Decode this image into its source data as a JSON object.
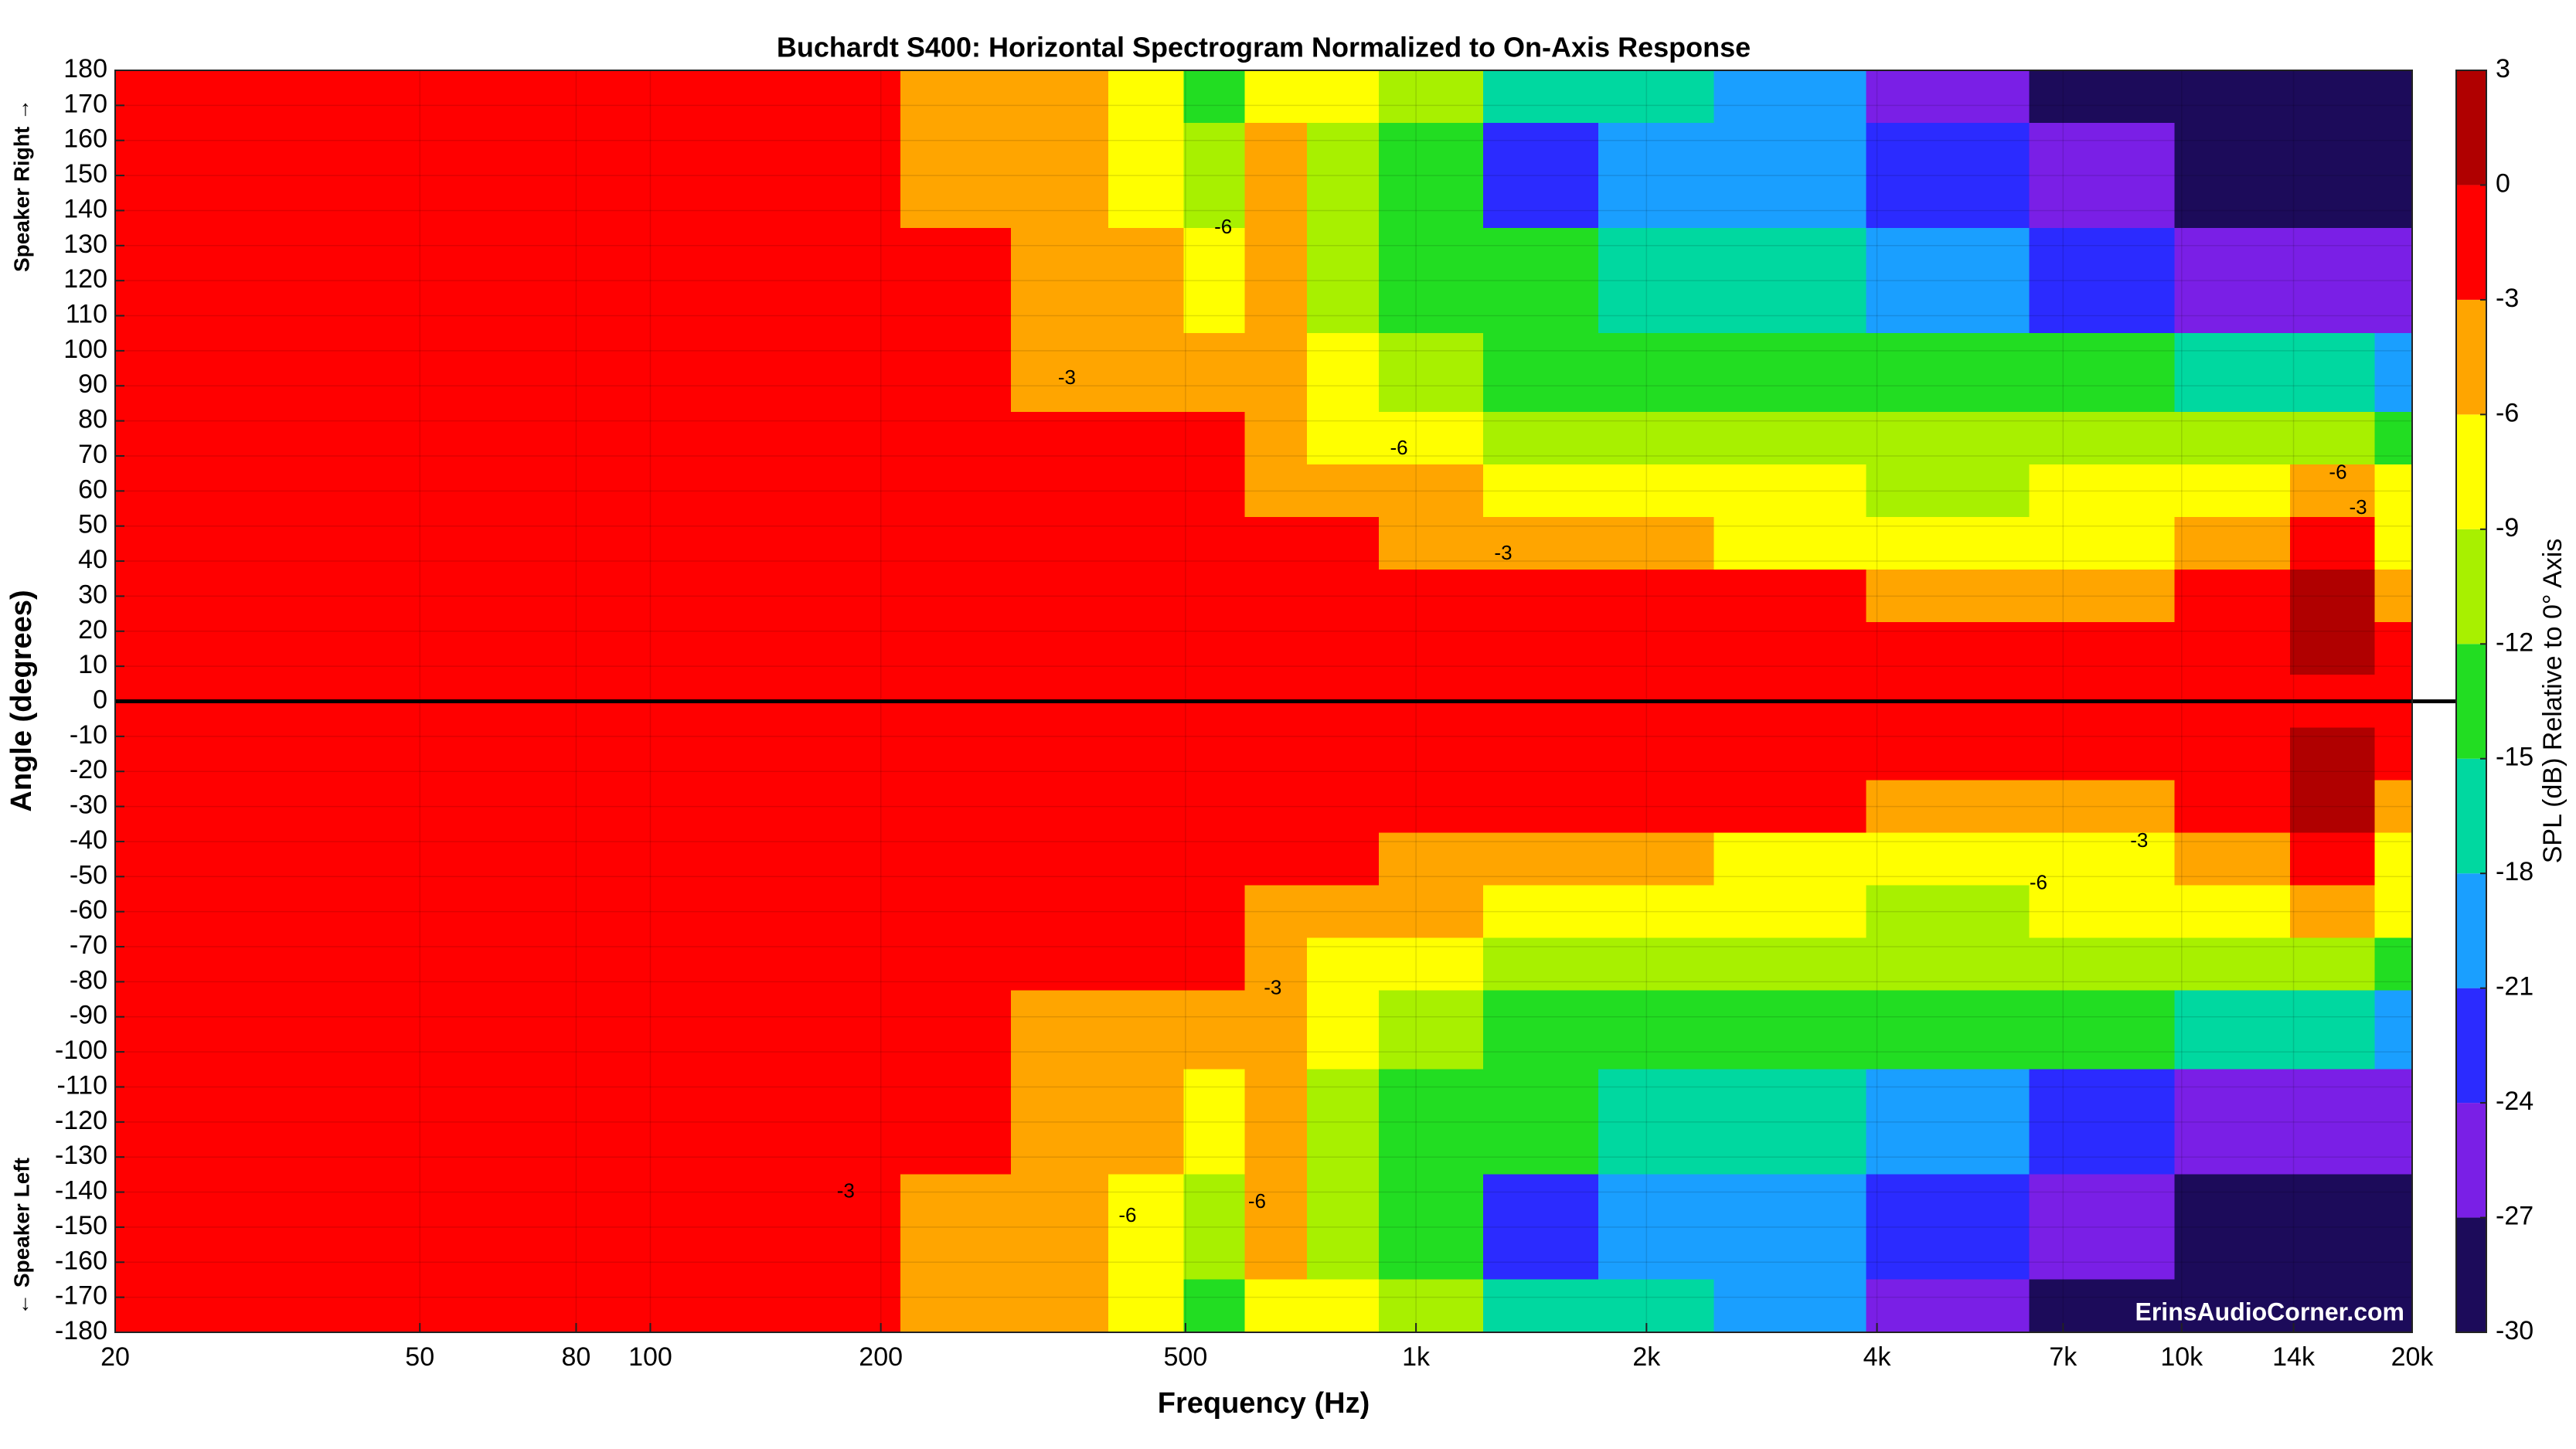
{
  "chart_data": {
    "type": "heatmap",
    "title": "Buchardt S400: Horizontal Spectrogram Normalized to On-Axis Response",
    "x_label": "Frequency (Hz)",
    "y_label": "Angle (degrees)",
    "y_label_top": "Speaker Right →",
    "y_label_bottom": "← Speaker Left",
    "colorbar_label": "SPL (dB) Relative to 0° Axis",
    "watermark": "ErinsAudioCorner.com",
    "x_log": true,
    "grid": true,
    "hline": 0,
    "xlim": [
      20,
      20000
    ],
    "ylim": [
      -180,
      180
    ],
    "xticks": [
      20,
      50,
      80,
      100,
      200,
      500,
      {
        "value": 1000,
        "label": "1k"
      },
      {
        "value": 2000,
        "label": "2k"
      },
      {
        "value": 4000,
        "label": "4k"
      },
      {
        "value": 7000,
        "label": "7k"
      },
      {
        "value": 10000,
        "label": "10k"
      },
      {
        "value": 14000,
        "label": "14k"
      },
      {
        "value": 20000,
        "label": "20k"
      }
    ],
    "yticks": [
      180,
      170,
      160,
      150,
      140,
      130,
      120,
      110,
      100,
      90,
      80,
      70,
      60,
      50,
      40,
      30,
      20,
      10,
      0,
      -10,
      -20,
      -30,
      -40,
      -50,
      -60,
      -70,
      -80,
      -90,
      -100,
      -110,
      -120,
      -130,
      -140,
      -150,
      -160,
      -170,
      -180
    ],
    "clim": [
      -30,
      3
    ],
    "cticks": [
      -30,
      -27,
      -24,
      -21,
      -18,
      -15,
      -12,
      -9,
      -6,
      -3,
      0,
      3
    ],
    "colors": [
      "#1c0b5a",
      "#7a1fe6",
      "#2b2bff",
      "#1a9fff",
      "#00d8a0",
      "#22dd22",
      "#a8f000",
      "#ffff00",
      "#ffa500",
      "#ff0000",
      "#b00000"
    ],
    "x": [
      20,
      100,
      180,
      250,
      350,
      450,
      550,
      650,
      800,
      1000,
      1500,
      2000,
      3000,
      5000,
      8000,
      12000,
      16000,
      20000
    ],
    "y": [
      180,
      150,
      120,
      90,
      75,
      60,
      45,
      30,
      15,
      0,
      -15,
      -30,
      -45,
      -60,
      -75,
      -90,
      -120,
      -150,
      -180
    ],
    "z": [
      [
        0,
        0,
        -2,
        -4,
        -4.5,
        -7,
        -14,
        -7,
        -8,
        -11,
        -15,
        -17,
        -20,
        -24,
        -27,
        -30,
        -30,
        -30
      ],
      [
        0,
        0,
        -0.5,
        -4,
        -4.5,
        -7,
        -10,
        -5,
        -9,
        -13,
        -22,
        -18,
        -20,
        -22,
        -24,
        -30,
        -28,
        -30
      ],
      [
        0,
        0,
        0,
        -1.5,
        -4,
        -5,
        -7,
        -5,
        -9,
        -12,
        -14,
        -15,
        -17,
        -18,
        -21,
        -25,
        -24,
        -25
      ],
      [
        0,
        0,
        0,
        0,
        -3.5,
        -4,
        -3,
        -4.5,
        -8,
        -10,
        -12,
        -12.5,
        -13,
        -13.5,
        -14,
        -15,
        -15,
        -18
      ],
      [
        0,
        0,
        0,
        0,
        0,
        -1,
        -2,
        -4,
        -7,
        -8,
        -10,
        -10,
        -10.5,
        -11,
        -11,
        -11,
        -9,
        -12
      ],
      [
        0,
        0,
        0,
        0,
        0,
        0,
        -1,
        -3.5,
        -4,
        -5,
        -6.5,
        -7.5,
        -8.5,
        -9,
        -8.5,
        -8,
        -5,
        -8
      ],
      [
        0,
        0,
        0,
        0,
        0,
        0,
        0,
        -1,
        -2,
        -3.5,
        -4,
        -5,
        -6.5,
        -7,
        -6.5,
        -5,
        -1,
        -6
      ],
      [
        0,
        0,
        0,
        0,
        0,
        0,
        0,
        0,
        -0.5,
        -1,
        -1.5,
        -2,
        -2.5,
        -3.5,
        -3.5,
        -2.5,
        1,
        -3
      ],
      [
        0,
        0,
        0,
        0,
        0,
        0,
        0,
        0,
        0,
        0,
        0,
        0,
        0,
        0,
        0,
        -0.5,
        1,
        -1
      ],
      [
        0,
        0,
        0,
        0,
        0,
        0,
        0,
        0,
        0,
        0,
        0,
        0,
        0,
        0,
        0,
        0,
        0,
        0
      ],
      [
        0,
        0,
        0,
        0,
        0,
        0,
        0,
        0,
        0,
        0,
        0,
        0,
        0,
        0,
        0,
        -0.5,
        1,
        -1
      ],
      [
        0,
        0,
        0,
        0,
        0,
        0,
        0,
        0,
        -0.5,
        -1,
        -1.5,
        -2,
        -2.5,
        -3.5,
        -3.5,
        -2.5,
        1,
        -3
      ],
      [
        0,
        0,
        0,
        0,
        0,
        0,
        0,
        -1,
        -2,
        -3.5,
        -4,
        -5,
        -6.5,
        -7,
        -6.5,
        -5,
        -1,
        -6
      ],
      [
        0,
        0,
        0,
        0,
        0,
        0,
        -1,
        -3.5,
        -4,
        -5,
        -6.5,
        -7.5,
        -8.5,
        -9,
        -8.5,
        -8,
        -5,
        -8
      ],
      [
        0,
        0,
        0,
        0,
        0,
        -1,
        -2,
        -4,
        -7,
        -8,
        -10,
        -10,
        -10.5,
        -11,
        -11,
        -11,
        -9,
        -12
      ],
      [
        0,
        0,
        0,
        0,
        -3.5,
        -4,
        -3,
        -4.5,
        -8,
        -10,
        -12,
        -12.5,
        -13,
        -13.5,
        -14,
        -15,
        -15,
        -18
      ],
      [
        0,
        0,
        0,
        -1.5,
        -4,
        -5,
        -7,
        -5,
        -9,
        -12,
        -14,
        -15,
        -17,
        -18,
        -21,
        -25,
        -24,
        -25
      ],
      [
        0,
        0,
        -0.5,
        -4,
        -4.5,
        -7,
        -10,
        -5,
        -9,
        -13,
        -22,
        -18,
        -20,
        -22,
        -24,
        -30,
        -28,
        -30
      ],
      [
        0,
        0,
        -2,
        -4,
        -4.5,
        -7,
        -14,
        -7,
        -8,
        -11,
        -15,
        -17,
        -20,
        -24,
        -27,
        -30,
        -30,
        -30
      ]
    ],
    "annotations": [
      {
        "text": "-3",
        "x": 350,
        "y": 92
      },
      {
        "text": "-6",
        "x": 560,
        "y": 135
      },
      {
        "text": "-6",
        "x": 950,
        "y": 72
      },
      {
        "text": "-3",
        "x": 1300,
        "y": 42
      },
      {
        "text": "-6",
        "x": 16000,
        "y": 65
      },
      {
        "text": "-3",
        "x": 17000,
        "y": 55
      },
      {
        "text": "-3",
        "x": 650,
        "y": -82
      },
      {
        "text": "-3",
        "x": 180,
        "y": -140
      },
      {
        "text": "-6",
        "x": 420,
        "y": -147
      },
      {
        "text": "-6",
        "x": 620,
        "y": -143
      },
      {
        "text": "-6",
        "x": 6500,
        "y": -52
      },
      {
        "text": "-3",
        "x": 8800,
        "y": -40
      }
    ]
  }
}
